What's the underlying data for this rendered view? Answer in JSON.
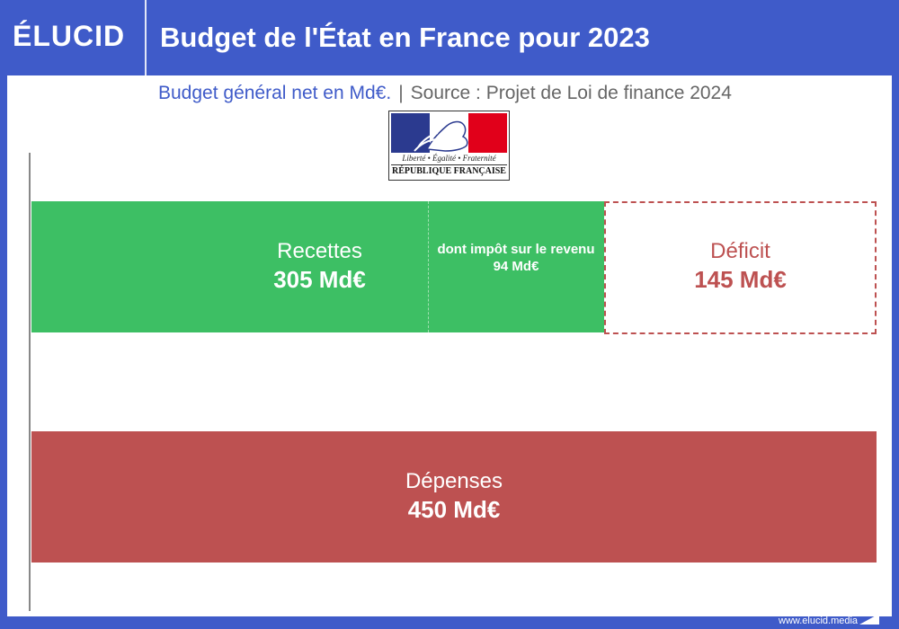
{
  "header": {
    "logo": "ÉLUCID",
    "title": "Budget de l'État en France pour 2023"
  },
  "subtitle": {
    "main": "Budget général net en Md€.",
    "separator": "|",
    "source": "Source : Projet de Loi de finance 2024"
  },
  "emblem": {
    "motto": "Liberté • Égalité • Fraternité",
    "name": "RÉPUBLIQUE FRANÇAISE"
  },
  "footer": {
    "url": "www.elucid.media"
  },
  "colors": {
    "brand_blue": "#3f5bc9",
    "recettes": "#3dbf64",
    "depenses": "#bd5151",
    "deficit": "#bd5151"
  },
  "chart_data": {
    "type": "bar",
    "unit": "Md€",
    "bars": [
      {
        "label": "Recettes",
        "value": 305,
        "value_text": "305 Md€",
        "sub_component": {
          "label": "dont impôt sur le revenu",
          "value": 94,
          "value_text": "94 Md€"
        }
      },
      {
        "label": "Déficit",
        "value": 145,
        "value_text": "145 Md€",
        "stacked_on": "Recettes"
      },
      {
        "label": "Dépenses",
        "value": 450,
        "value_text": "450 Md€"
      }
    ]
  }
}
